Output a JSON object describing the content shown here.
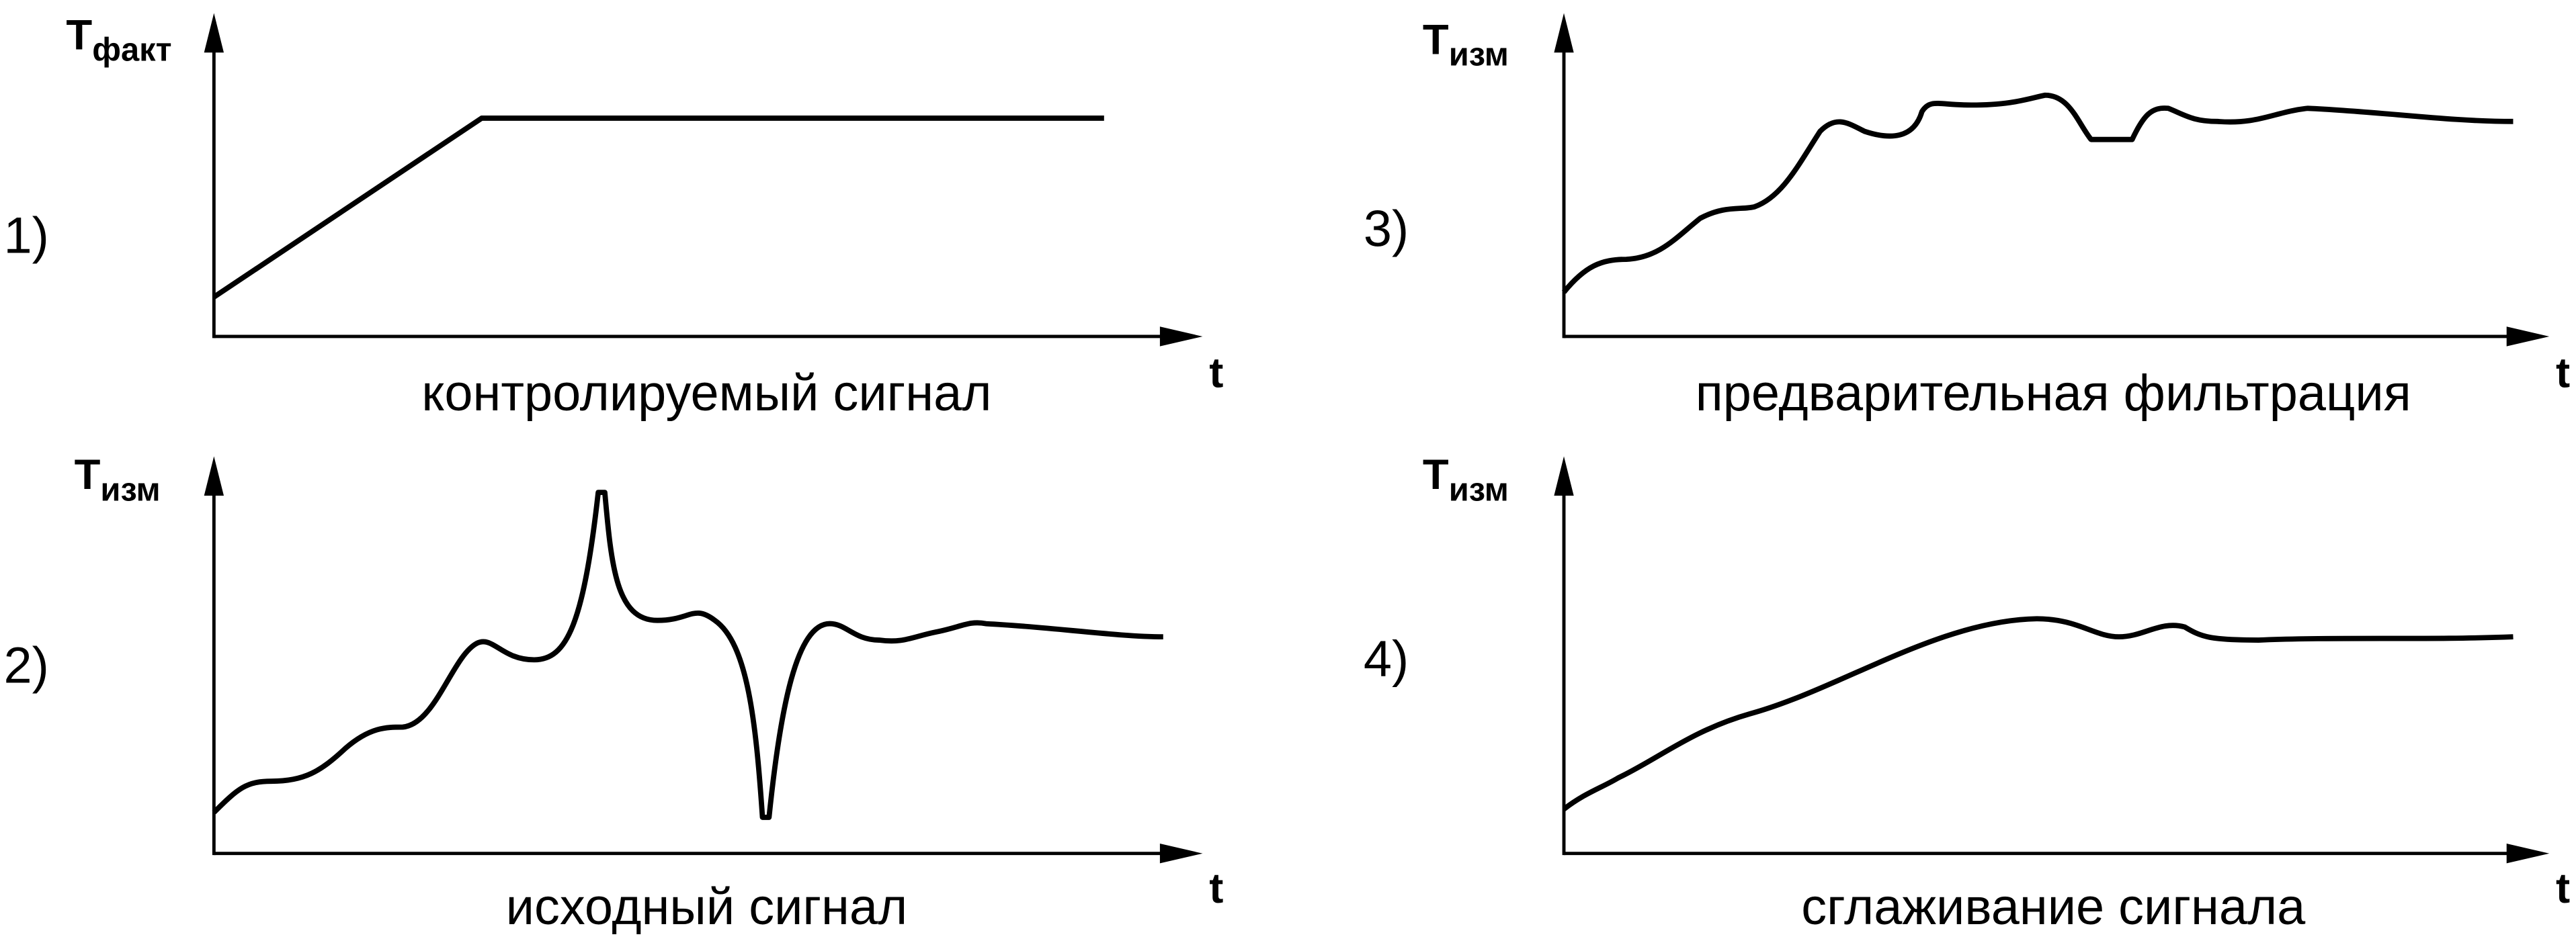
{
  "panels": [
    {
      "number": "1)",
      "y_label": {
        "main": "Т",
        "sub": "факт"
      },
      "x_label": "t",
      "caption": "контролируемый сигнал"
    },
    {
      "number": "2)",
      "y_label": {
        "main": "Т",
        "sub": "изм"
      },
      "x_label": "t",
      "caption": "исходный сигнал"
    },
    {
      "number": "3)",
      "y_label": {
        "main": "Т",
        "sub": "изм"
      },
      "x_label": "t",
      "caption": "предварительная фильтрация"
    },
    {
      "number": "4)",
      "y_label": {
        "main": "Т",
        "sub": "изм"
      },
      "x_label": "t",
      "caption": "сглаживание сигнала"
    }
  ]
}
